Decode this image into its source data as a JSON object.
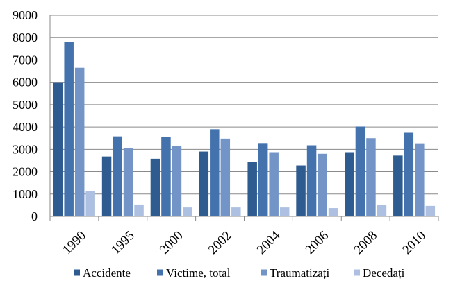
{
  "chart_data": {
    "type": "bar",
    "title": "",
    "xlabel": "",
    "ylabel": "",
    "ylim": [
      0,
      9000
    ],
    "yticks": [
      0,
      1000,
      2000,
      3000,
      4000,
      5000,
      6000,
      7000,
      8000,
      9000
    ],
    "grid": true,
    "legend_position": "bottom",
    "categories": [
      "1990",
      "1995",
      "2000",
      "2002",
      "2004",
      "2006",
      "2008",
      "2010"
    ],
    "series": [
      {
        "name": "Accidente",
        "color": "#2f5c90",
        "values": [
          6000,
          2680,
          2580,
          2900,
          2430,
          2280,
          2870,
          2720
        ]
      },
      {
        "name": "Victime, total",
        "color": "#4472ad",
        "values": [
          7800,
          3580,
          3550,
          3900,
          3280,
          3180,
          4020,
          3740
        ]
      },
      {
        "name": "Traumatizați",
        "color": "#7394c7",
        "values": [
          6650,
          3040,
          3150,
          3480,
          2870,
          2800,
          3500,
          3270
        ]
      },
      {
        "name": "Decedați",
        "color": "#adc0e1",
        "values": [
          1130,
          530,
          400,
          400,
          400,
          370,
          500,
          470
        ]
      }
    ]
  }
}
